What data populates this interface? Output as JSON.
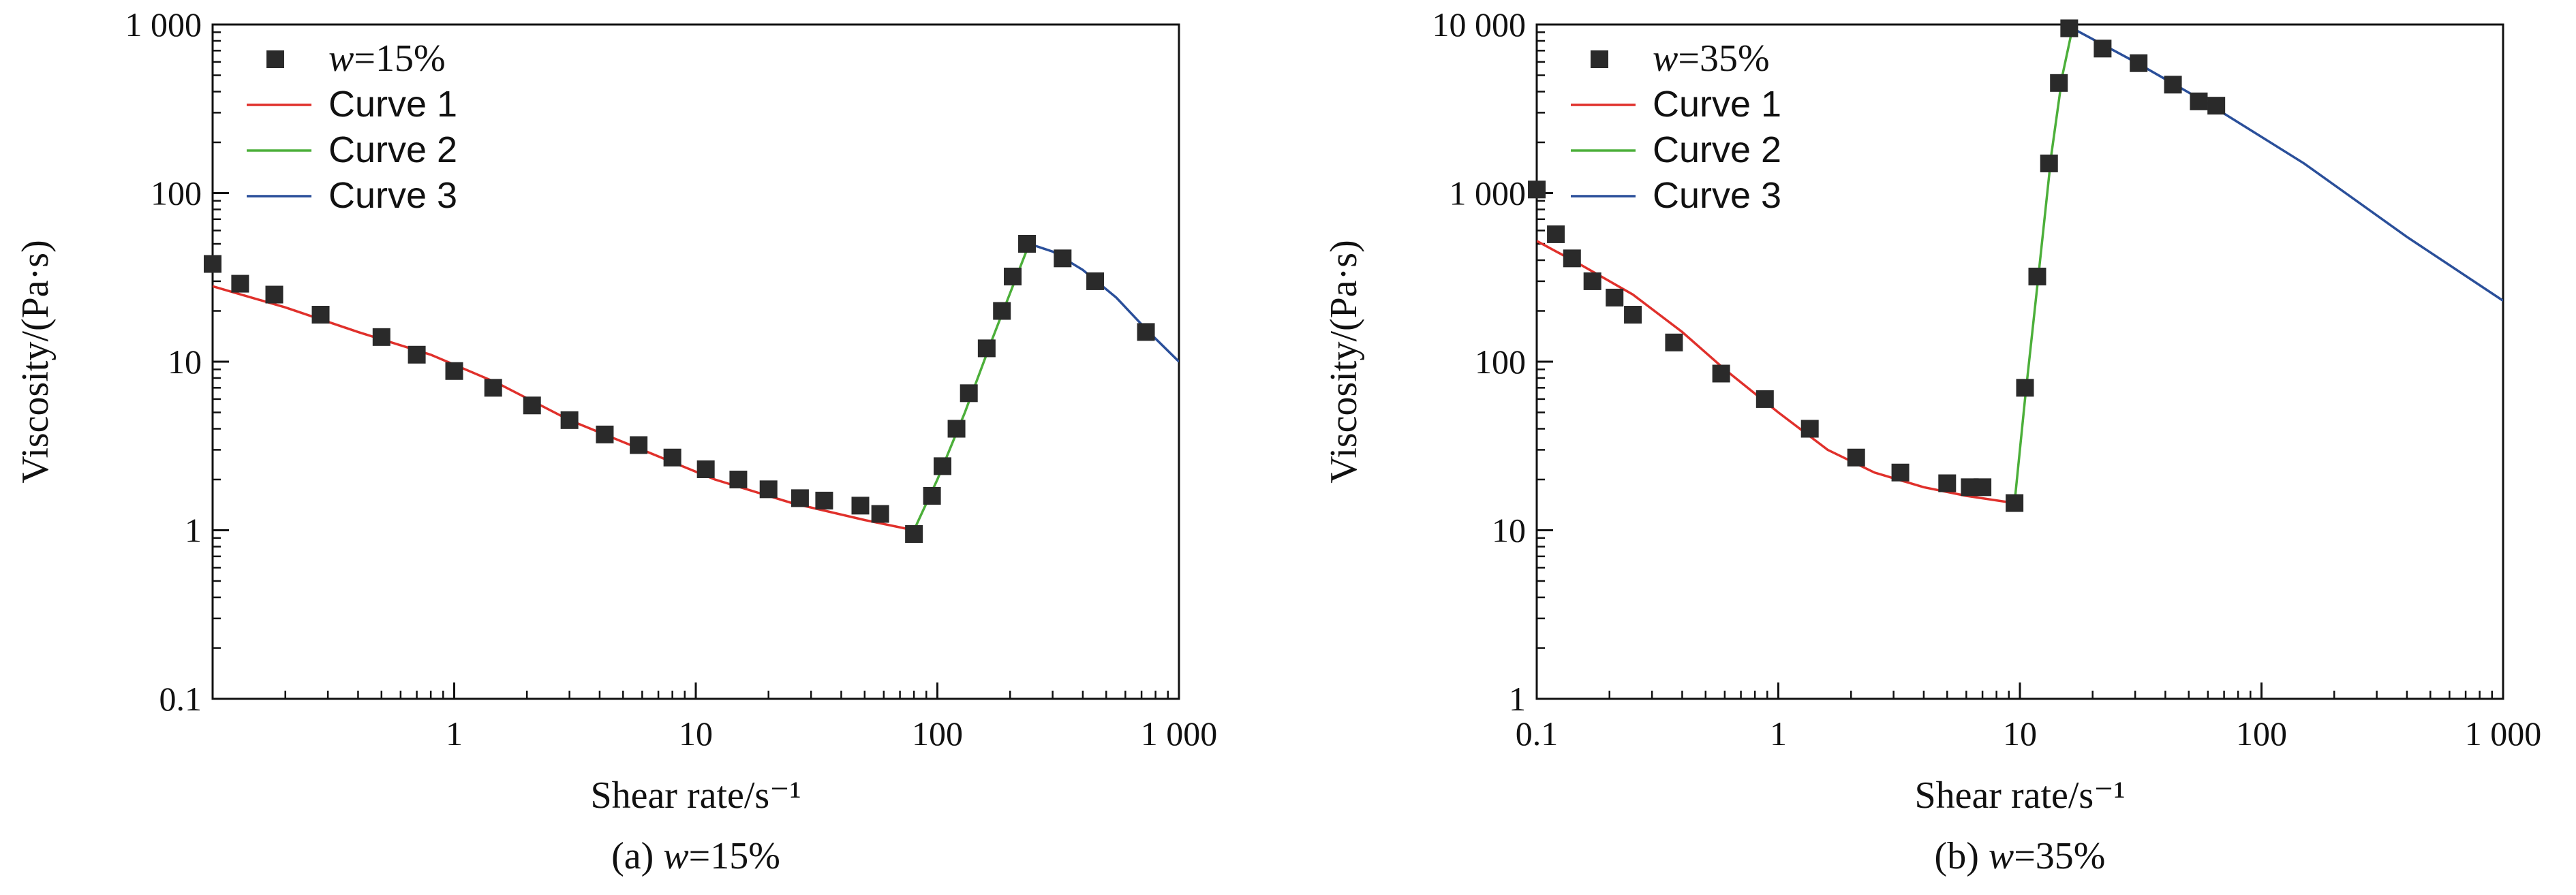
{
  "chart_data": [
    {
      "type": "scatter",
      "panel": "a",
      "caption_prefix": "(a) ",
      "caption_var": "w",
      "caption_value": "=15%",
      "xlabel": "Shear rate/s⁻¹",
      "ylabel": "Viscosity/(Pa·s)",
      "x_scale": "log",
      "y_scale": "log",
      "xlim": [
        0.1,
        1000
      ],
      "ylim": [
        0.1,
        1000
      ],
      "x_ticks": [
        {
          "value": 1,
          "label": "1"
        },
        {
          "value": 10,
          "label": "10"
        },
        {
          "value": 100,
          "label": "100"
        },
        {
          "value": 1000,
          "label": "1 000"
        }
      ],
      "y_ticks": [
        {
          "value": 0.1,
          "label": "0.1"
        },
        {
          "value": 1,
          "label": "1"
        },
        {
          "value": 10,
          "label": "10"
        },
        {
          "value": 100,
          "label": "100"
        },
        {
          "value": 1000,
          "label": "1 000"
        }
      ],
      "legend_position": "top-left",
      "points": {
        "legend_var": "w",
        "legend_value": "=15%",
        "color": "#2a2a2a",
        "x": [
          0.1,
          0.13,
          0.18,
          0.28,
          0.5,
          0.7,
          1.0,
          1.45,
          2.1,
          3.0,
          4.2,
          5.8,
          8.0,
          11.0,
          15.0,
          20.0,
          27.0,
          34.0,
          48.0,
          58.0,
          80.0,
          95.0,
          105.0,
          120.0,
          135.0,
          160.0,
          185.0,
          205.0,
          235.0,
          330.0,
          450.0,
          730.0
        ],
        "y": [
          38.0,
          29.0,
          25.0,
          19.0,
          14.0,
          11.0,
          8.8,
          7.0,
          5.5,
          4.5,
          3.7,
          3.2,
          2.7,
          2.3,
          2.0,
          1.75,
          1.55,
          1.5,
          1.4,
          1.25,
          0.95,
          1.6,
          2.4,
          4.0,
          6.5,
          12.0,
          20.0,
          32.0,
          50.0,
          41.0,
          30.0,
          15.0
        ]
      },
      "series": [
        {
          "name": "Curve 1",
          "color": "#e0302b",
          "x": [
            0.1,
            0.2,
            0.4,
            0.8,
            1.5,
            3.0,
            6.0,
            12.0,
            25.0,
            50.0,
            80.0
          ],
          "y": [
            28.0,
            21.0,
            15.0,
            11.0,
            7.5,
            4.5,
            3.0,
            2.0,
            1.45,
            1.15,
            1.0
          ]
        },
        {
          "name": "Curve 2",
          "color": "#4caf3a",
          "x": [
            80.0,
            100.0,
            130.0,
            170.0,
            240.0
          ],
          "y": [
            1.0,
            2.0,
            5.0,
            14.0,
            50.0
          ]
        },
        {
          "name": "Curve 3",
          "color": "#2a4f9a",
          "x": [
            240.0,
            300.0,
            400.0,
            550.0,
            750.0,
            1000.0
          ],
          "y": [
            50.0,
            45.0,
            35.0,
            24.0,
            15.0,
            10.0
          ]
        }
      ]
    },
    {
      "type": "scatter",
      "panel": "b",
      "caption_prefix": "(b) ",
      "caption_var": "w",
      "caption_value": "=35%",
      "xlabel": "Shear rate/s⁻¹",
      "ylabel": "Viscosity/(Pa·s)",
      "x_scale": "log",
      "y_scale": "log",
      "xlim": [
        0.1,
        1000
      ],
      "ylim": [
        1,
        10000
      ],
      "x_ticks": [
        {
          "value": 0.1,
          "label": "0.1"
        },
        {
          "value": 1,
          "label": "1"
        },
        {
          "value": 10,
          "label": "10"
        },
        {
          "value": 100,
          "label": "100"
        },
        {
          "value": 1000,
          "label": "1 000"
        }
      ],
      "y_ticks": [
        {
          "value": 1,
          "label": "1"
        },
        {
          "value": 10,
          "label": "10"
        },
        {
          "value": 100,
          "label": "100"
        },
        {
          "value": 1000,
          "label": "1 000"
        },
        {
          "value": 10000,
          "label": "10 000"
        }
      ],
      "legend_position": "top-left",
      "points": {
        "legend_var": "w",
        "legend_value": "=35%",
        "color": "#2a2a2a",
        "x": [
          0.1,
          0.12,
          0.14,
          0.17,
          0.21,
          0.25,
          0.37,
          0.58,
          0.88,
          1.35,
          2.1,
          3.2,
          5.0,
          6.2,
          7.0,
          9.5,
          10.5,
          11.8,
          13.2,
          14.5,
          16.0,
          22.0,
          31.0,
          43.0,
          55.0,
          65.0
        ],
        "y": [
          1050.0,
          570.0,
          410.0,
          300.0,
          240.0,
          190.0,
          130.0,
          85.0,
          60.0,
          40.0,
          27.0,
          22.0,
          19.0,
          18.0,
          18.0,
          14.5,
          70.0,
          320.0,
          1500.0,
          4500.0,
          9500.0,
          7200.0,
          5900.0,
          4400.0,
          3500.0,
          3300.0
        ]
      },
      "series": [
        {
          "name": "Curve 1",
          "color": "#e0302b",
          "x": [
            0.1,
            0.15,
            0.25,
            0.4,
            0.6,
            1.0,
            1.6,
            2.5,
            4.0,
            6.0,
            9.5
          ],
          "y": [
            520.0,
            380.0,
            250.0,
            150.0,
            90.0,
            50.0,
            30.0,
            22.0,
            18.0,
            16.0,
            14.5
          ]
        },
        {
          "name": "Curve 2",
          "color": "#4caf3a",
          "x": [
            9.5,
            10.5,
            12.0,
            13.5,
            15.0,
            16.5
          ],
          "y": [
            14.5,
            60.0,
            350.0,
            1700.0,
            5000.0,
            9500.0
          ]
        },
        {
          "name": "Curve 3",
          "color": "#2a4f9a",
          "x": [
            16.5,
            30.0,
            60.0,
            150.0,
            400.0,
            1000.0
          ],
          "y": [
            9500.0,
            6000.0,
            3400.0,
            1500.0,
            550.0,
            230.0
          ]
        }
      ]
    }
  ]
}
